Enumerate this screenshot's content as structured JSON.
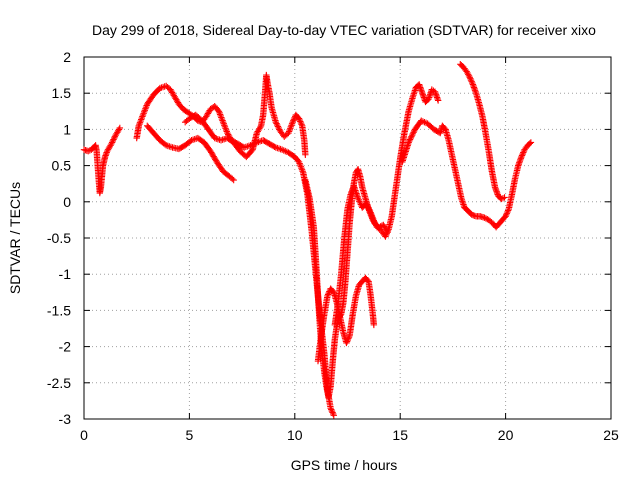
{
  "chart_data": {
    "type": "scatter",
    "title": "Day 299 of 2018, Sidereal Day-to-day VTEC variation (SDTVAR) for receiver xixo",
    "xlabel": "GPS time / hours",
    "ylabel": "SDTVAR / TECUs",
    "xlim": [
      0,
      25
    ],
    "ylim": [
      -3,
      2
    ],
    "xticks": [
      0,
      5,
      10,
      15,
      20,
      25
    ],
    "yticks": [
      -3,
      -2.5,
      -2,
      -1.5,
      -1,
      -0.5,
      0,
      0.5,
      1,
      1.5,
      2
    ],
    "xtick_labels": [
      "0",
      "5",
      "10",
      "15",
      "20",
      "25"
    ],
    "ytick_labels": [
      "-3",
      "-2.5",
      "-2",
      "-1.5",
      "-1",
      "-0.5",
      "0",
      "0.5",
      "1",
      "1.5",
      "2"
    ],
    "grid": true,
    "marker": "+",
    "color": "#ff0000",
    "series": [
      {
        "values": [
          [
            0.0,
            0.72
          ],
          [
            0.2,
            0.7
          ],
          [
            0.35,
            0.72
          ],
          [
            0.45,
            0.75
          ],
          [
            0.55,
            0.78
          ],
          [
            0.6,
            0.7
          ],
          [
            0.65,
            0.5
          ],
          [
            0.7,
            0.3
          ],
          [
            0.75,
            0.12
          ],
          [
            0.8,
            0.2
          ],
          [
            0.85,
            0.35
          ],
          [
            0.9,
            0.5
          ],
          [
            1.0,
            0.62
          ],
          [
            1.1,
            0.7
          ],
          [
            1.3,
            0.8
          ],
          [
            1.5,
            0.92
          ],
          [
            1.7,
            1.02
          ]
        ]
      },
      {
        "values": [
          [
            2.5,
            0.88
          ],
          [
            2.6,
            1.05
          ],
          [
            2.8,
            1.2
          ],
          [
            3.0,
            1.35
          ],
          [
            3.3,
            1.48
          ],
          [
            3.6,
            1.57
          ],
          [
            3.9,
            1.6
          ],
          [
            4.1,
            1.55
          ],
          [
            4.3,
            1.45
          ],
          [
            4.5,
            1.35
          ],
          [
            4.7,
            1.28
          ],
          [
            5.0,
            1.22
          ],
          [
            5.2,
            1.18
          ],
          [
            5.4,
            1.12
          ],
          [
            5.6,
            1.1
          ],
          [
            5.8,
            1.18
          ],
          [
            6.0,
            1.28
          ],
          [
            6.2,
            1.32
          ],
          [
            6.4,
            1.25
          ],
          [
            6.6,
            1.1
          ],
          [
            6.8,
            0.95
          ],
          [
            7.0,
            0.85
          ],
          [
            7.3,
            0.8
          ],
          [
            7.6,
            0.75
          ],
          [
            7.9,
            0.78
          ],
          [
            8.2,
            0.82
          ],
          [
            8.5,
            0.85
          ],
          [
            8.8,
            0.8
          ],
          [
            9.1,
            0.75
          ],
          [
            9.4,
            0.72
          ],
          [
            9.7,
            0.68
          ],
          [
            10.0,
            0.62
          ],
          [
            10.2,
            0.55
          ],
          [
            10.4,
            0.4
          ],
          [
            10.6,
            0.1
          ],
          [
            10.8,
            -0.4
          ],
          [
            11.0,
            -1.0
          ],
          [
            11.2,
            -1.6
          ],
          [
            11.4,
            -2.1
          ],
          [
            11.55,
            -2.6
          ],
          [
            11.7,
            -2.85
          ],
          [
            11.85,
            -2.95
          ]
        ]
      },
      {
        "values": [
          [
            3.0,
            1.05
          ],
          [
            3.3,
            0.95
          ],
          [
            3.6,
            0.85
          ],
          [
            3.9,
            0.78
          ],
          [
            4.2,
            0.75
          ],
          [
            4.5,
            0.73
          ],
          [
            4.8,
            0.78
          ],
          [
            5.1,
            0.85
          ],
          [
            5.4,
            0.88
          ],
          [
            5.7,
            0.82
          ],
          [
            6.0,
            0.7
          ],
          [
            6.3,
            0.55
          ],
          [
            6.6,
            0.42
          ],
          [
            6.9,
            0.35
          ],
          [
            7.1,
            0.3
          ]
        ]
      },
      {
        "values": [
          [
            4.8,
            1.1
          ],
          [
            5.0,
            1.15
          ],
          [
            5.3,
            1.2
          ],
          [
            5.6,
            1.12
          ],
          [
            5.9,
            1.0
          ],
          [
            6.2,
            0.88
          ],
          [
            6.5,
            0.85
          ],
          [
            6.8,
            0.88
          ],
          [
            7.1,
            0.82
          ],
          [
            7.4,
            0.7
          ],
          [
            7.7,
            0.62
          ],
          [
            8.0,
            0.72
          ],
          [
            8.2,
            0.95
          ],
          [
            8.4,
            1.05
          ],
          [
            8.5,
            1.2
          ],
          [
            8.6,
            1.55
          ],
          [
            8.65,
            1.75
          ],
          [
            8.7,
            1.65
          ],
          [
            8.8,
            1.5
          ],
          [
            8.9,
            1.3
          ],
          [
            9.1,
            1.1
          ],
          [
            9.3,
            0.98
          ],
          [
            9.5,
            0.9
          ],
          [
            9.7,
            0.95
          ],
          [
            9.9,
            1.1
          ],
          [
            10.05,
            1.2
          ],
          [
            10.2,
            1.15
          ],
          [
            10.35,
            1.05
          ],
          [
            10.45,
            0.85
          ],
          [
            10.5,
            0.65
          ]
        ]
      },
      {
        "values": [
          [
            10.5,
            0.3
          ],
          [
            10.7,
            0.05
          ],
          [
            10.9,
            -0.35
          ],
          [
            11.0,
            -0.8
          ],
          [
            11.1,
            -1.3
          ],
          [
            11.2,
            -1.75
          ],
          [
            11.3,
            -2.1
          ],
          [
            11.4,
            -2.35
          ],
          [
            11.5,
            -2.55
          ],
          [
            11.6,
            -2.7
          ],
          [
            11.7,
            -2.55
          ],
          [
            11.8,
            -2.2
          ],
          [
            11.9,
            -1.9
          ],
          [
            12.0,
            -1.7
          ],
          [
            12.1,
            -1.6
          ],
          [
            12.2,
            -1.55
          ],
          [
            12.3,
            -1.4
          ],
          [
            12.4,
            -1.1
          ],
          [
            12.5,
            -0.7
          ],
          [
            12.6,
            -0.3
          ],
          [
            12.7,
            0.0
          ],
          [
            12.8,
            0.25
          ],
          [
            12.9,
            0.4
          ],
          [
            13.0,
            0.45
          ],
          [
            13.1,
            0.35
          ],
          [
            13.2,
            0.2
          ],
          [
            13.35,
            0.05
          ],
          [
            13.5,
            -0.1
          ],
          [
            13.7,
            -0.25
          ],
          [
            13.9,
            -0.35
          ],
          [
            14.1,
            -0.4
          ],
          [
            14.3,
            -0.48
          ],
          [
            14.45,
            -0.38
          ],
          [
            14.6,
            -0.2
          ],
          [
            14.8,
            0.2
          ],
          [
            15.0,
            0.6
          ],
          [
            15.2,
            0.95
          ],
          [
            15.4,
            1.25
          ],
          [
            15.6,
            1.45
          ],
          [
            15.75,
            1.58
          ],
          [
            15.9,
            1.62
          ],
          [
            16.05,
            1.5
          ],
          [
            16.2,
            1.38
          ],
          [
            16.35,
            1.42
          ],
          [
            16.5,
            1.55
          ],
          [
            16.65,
            1.52
          ],
          [
            16.8,
            1.4
          ]
        ]
      },
      {
        "values": [
          [
            11.1,
            -2.2
          ],
          [
            11.25,
            -1.85
          ],
          [
            11.4,
            -1.55
          ],
          [
            11.55,
            -1.3
          ],
          [
            11.7,
            -1.2
          ],
          [
            11.85,
            -1.25
          ],
          [
            12.0,
            -1.4
          ],
          [
            12.15,
            -1.6
          ],
          [
            12.3,
            -1.8
          ],
          [
            12.45,
            -1.95
          ],
          [
            12.6,
            -1.85
          ],
          [
            12.75,
            -1.55
          ],
          [
            12.9,
            -1.3
          ],
          [
            13.05,
            -1.15
          ],
          [
            13.2,
            -1.1
          ],
          [
            13.35,
            -1.05
          ],
          [
            13.5,
            -1.1
          ],
          [
            13.6,
            -1.3
          ],
          [
            13.7,
            -1.55
          ],
          [
            13.75,
            -1.7
          ]
        ]
      },
      {
        "values": [
          [
            11.9,
            -1.7
          ],
          [
            12.05,
            -1.4
          ],
          [
            12.2,
            -1.0
          ],
          [
            12.35,
            -0.5
          ],
          [
            12.5,
            -0.1
          ],
          [
            12.65,
            0.1
          ],
          [
            12.8,
            0.22
          ],
          [
            13.0,
            0.05
          ],
          [
            13.2,
            -0.08
          ],
          [
            13.4,
            -0.02
          ],
          [
            13.6,
            -0.15
          ],
          [
            13.8,
            -0.3
          ],
          [
            14.0,
            -0.35
          ],
          [
            14.2,
            -0.32
          ],
          [
            14.4,
            -0.42
          ]
        ]
      },
      {
        "values": [
          [
            15.1,
            0.55
          ],
          [
            15.4,
            0.82
          ],
          [
            15.7,
            1.0
          ],
          [
            16.0,
            1.12
          ],
          [
            16.3,
            1.08
          ],
          [
            16.6,
            1.0
          ],
          [
            16.9,
            0.95
          ],
          [
            17.0,
            1.05
          ],
          [
            17.15,
            1.0
          ],
          [
            17.3,
            0.85
          ],
          [
            17.45,
            0.65
          ],
          [
            17.6,
            0.45
          ],
          [
            17.75,
            0.25
          ],
          [
            17.9,
            0.05
          ],
          [
            18.05,
            -0.08
          ],
          [
            18.2,
            -0.12
          ],
          [
            18.4,
            -0.18
          ],
          [
            18.6,
            -0.2
          ],
          [
            18.8,
            -0.2
          ],
          [
            19.0,
            -0.22
          ],
          [
            19.2,
            -0.25
          ],
          [
            19.4,
            -0.3
          ],
          [
            19.55,
            -0.35
          ],
          [
            19.7,
            -0.3
          ],
          [
            19.85,
            -0.25
          ],
          [
            20.0,
            -0.2
          ],
          [
            20.15,
            -0.1
          ],
          [
            20.3,
            0.1
          ],
          [
            20.45,
            0.32
          ],
          [
            20.6,
            0.5
          ],
          [
            20.75,
            0.62
          ],
          [
            20.9,
            0.72
          ],
          [
            21.05,
            0.78
          ],
          [
            21.2,
            0.82
          ]
        ]
      },
      {
        "values": [
          [
            17.85,
            1.9
          ],
          [
            18.0,
            1.86
          ],
          [
            18.15,
            1.8
          ],
          [
            18.3,
            1.72
          ],
          [
            18.45,
            1.62
          ],
          [
            18.6,
            1.5
          ],
          [
            18.75,
            1.35
          ],
          [
            18.9,
            1.18
          ],
          [
            19.05,
            0.95
          ],
          [
            19.2,
            0.7
          ],
          [
            19.35,
            0.42
          ],
          [
            19.5,
            0.2
          ],
          [
            19.65,
            0.08
          ],
          [
            19.8,
            0.04
          ],
          [
            19.95,
            0.06
          ]
        ]
      }
    ]
  }
}
